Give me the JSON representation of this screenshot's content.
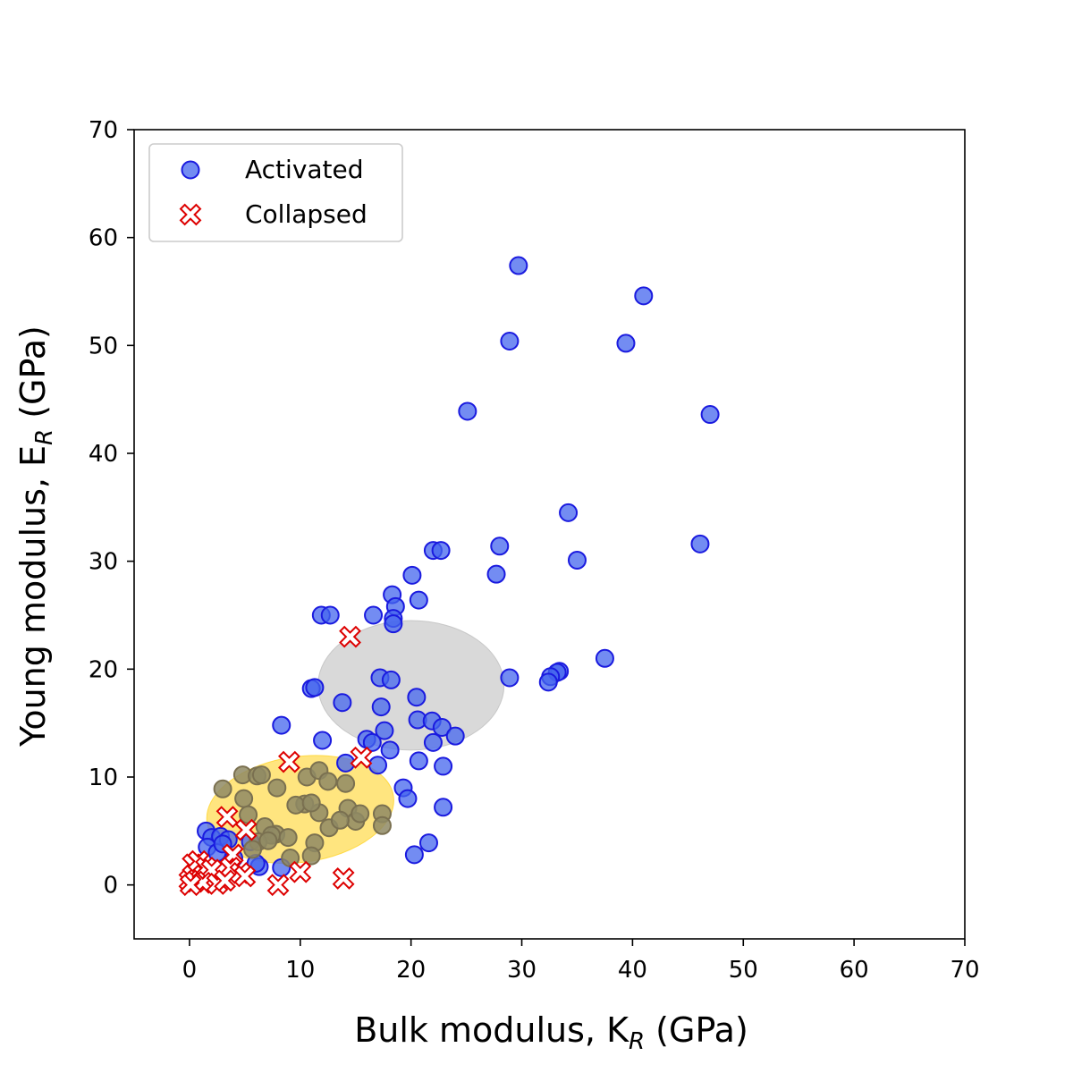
{
  "chart_data": {
    "type": "scatter",
    "xlabel": "Bulk modulus, K",
    "xlabel_sub": "R",
    "xlabel_unit": " (GPa)",
    "ylabel": "Young modulus, E",
    "ylabel_sub": "R",
    "ylabel_unit": " (GPa)",
    "xlim": [
      -5,
      70
    ],
    "ylim": [
      -5,
      70
    ],
    "xticks": [
      0,
      10,
      20,
      30,
      40,
      50,
      60,
      70
    ],
    "yticks": [
      0,
      10,
      20,
      30,
      40,
      50,
      60,
      70
    ],
    "grid": false,
    "legend_position": "top-left",
    "regions": [
      {
        "name": "grey-cluster",
        "cx": 20,
        "cy": 18.5,
        "rx": 8.4,
        "ry": 6,
        "angle_deg": 0,
        "color": "#bfbfbf",
        "opacity": 0.6
      },
      {
        "name": "yellow-cluster",
        "cx": 10,
        "cy": 7,
        "rx": 8.5,
        "ry": 4.9,
        "angle_deg": -8,
        "color": "#ffd42a",
        "opacity": 0.6
      }
    ],
    "series": [
      {
        "name": "Activated",
        "marker": "circle",
        "fill": "#4466ee",
        "stroke": "#1a1adf",
        "points": [
          [
            29.7,
            57.4
          ],
          [
            41,
            54.6
          ],
          [
            28.9,
            50.4
          ],
          [
            39.4,
            50.2
          ],
          [
            25.1,
            43.9
          ],
          [
            47,
            43.6
          ],
          [
            34.2,
            34.5
          ],
          [
            28,
            31.4
          ],
          [
            46.1,
            31.6
          ],
          [
            22,
            31
          ],
          [
            22.7,
            31
          ],
          [
            35,
            30.1
          ],
          [
            27.7,
            28.8
          ],
          [
            20.1,
            28.7
          ],
          [
            18.3,
            26.9
          ],
          [
            20.7,
            26.4
          ],
          [
            18.6,
            25.8
          ],
          [
            11.9,
            25
          ],
          [
            12.7,
            25
          ],
          [
            16.6,
            25
          ],
          [
            18.4,
            24.7
          ],
          [
            18.4,
            24.2
          ],
          [
            37.5,
            21
          ],
          [
            33.4,
            19.8
          ],
          [
            33.2,
            19.7
          ],
          [
            32.6,
            19.3
          ],
          [
            32.4,
            18.8
          ],
          [
            28.9,
            19.2
          ],
          [
            17.2,
            19.2
          ],
          [
            18.2,
            19
          ],
          [
            11,
            18.2
          ],
          [
            11.3,
            18.3
          ],
          [
            13.8,
            16.9
          ],
          [
            20.5,
            17.4
          ],
          [
            17.3,
            16.5
          ],
          [
            20.6,
            15.3
          ],
          [
            21.9,
            15.2
          ],
          [
            22.8,
            14.6
          ],
          [
            24,
            13.8
          ],
          [
            17.6,
            14.3
          ],
          [
            22,
            13.2
          ],
          [
            16,
            13.5
          ],
          [
            16.5,
            13.2
          ],
          [
            8.3,
            14.8
          ],
          [
            12,
            13.4
          ],
          [
            18.1,
            12.5
          ],
          [
            14.1,
            11.3
          ],
          [
            17,
            11.1
          ],
          [
            20.7,
            11.5
          ],
          [
            22.9,
            11
          ],
          [
            19.3,
            9
          ],
          [
            19.7,
            8
          ],
          [
            22.9,
            7.2
          ],
          [
            21.6,
            3.9
          ],
          [
            20.3,
            2.8
          ],
          [
            1.5,
            5
          ],
          [
            2,
            4.4
          ],
          [
            2.8,
            4.5
          ],
          [
            3.5,
            4.2
          ],
          [
            1.6,
            3.5
          ],
          [
            2.5,
            3
          ],
          [
            3,
            3.8
          ],
          [
            4,
            2.5
          ],
          [
            6.3,
            1.7
          ],
          [
            8.3,
            1.6
          ],
          [
            5.5,
            4
          ],
          [
            6,
            2
          ]
        ]
      },
      {
        "name": "Collapsed",
        "marker": "x-filled",
        "fill": "#ffffff",
        "stroke": "#dd0000",
        "points": [
          [
            14.5,
            23
          ],
          [
            9,
            11.4
          ],
          [
            15.5,
            11.8
          ],
          [
            3.4,
            6.3
          ],
          [
            5.1,
            5.1
          ],
          [
            3.9,
            2.8
          ],
          [
            0.3,
            1.9
          ],
          [
            0.8,
            2.2
          ],
          [
            1.5,
            1.6
          ],
          [
            2,
            1.4
          ],
          [
            3.7,
            1.6
          ],
          [
            4.6,
            1.1
          ],
          [
            0,
            0.4
          ],
          [
            0.5,
            0.3
          ],
          [
            1.2,
            0.2
          ],
          [
            2.5,
            0.1
          ],
          [
            3.2,
            0.4
          ],
          [
            5,
            0.8
          ],
          [
            10,
            1.2
          ],
          [
            8,
            0
          ],
          [
            13.9,
            0.6
          ],
          [
            0.1,
            0
          ]
        ]
      }
    ],
    "yellow_overlay_points": [
      [
        3,
        8.9
      ],
      [
        4.8,
        10.2
      ],
      [
        6.1,
        10.1
      ],
      [
        6.5,
        10.2
      ],
      [
        4.9,
        8
      ],
      [
        7.9,
        9
      ],
      [
        10.6,
        10
      ],
      [
        11.7,
        10.6
      ],
      [
        12.5,
        9.6
      ],
      [
        14.1,
        9.4
      ],
      [
        10.4,
        7.5
      ],
      [
        9.6,
        7.4
      ],
      [
        11.7,
        6.7
      ],
      [
        11,
        7.6
      ],
      [
        14.3,
        7.1
      ],
      [
        15,
        5.9
      ],
      [
        15.4,
        6.6
      ],
      [
        17.4,
        6.6
      ],
      [
        17.4,
        5.5
      ],
      [
        12.6,
        5.3
      ],
      [
        13.6,
        6
      ],
      [
        5.3,
        6.5
      ],
      [
        6.8,
        5.4
      ],
      [
        7.8,
        4.7
      ],
      [
        7.4,
        4.6
      ],
      [
        8.9,
        4.4
      ],
      [
        6.2,
        4
      ],
      [
        7.1,
        4.1
      ],
      [
        11.3,
        3.9
      ],
      [
        11,
        2.7
      ],
      [
        9.1,
        2.5
      ],
      [
        5.7,
        3.3
      ]
    ],
    "legend": [
      {
        "label": "Activated"
      },
      {
        "label": "Collapsed"
      }
    ]
  }
}
